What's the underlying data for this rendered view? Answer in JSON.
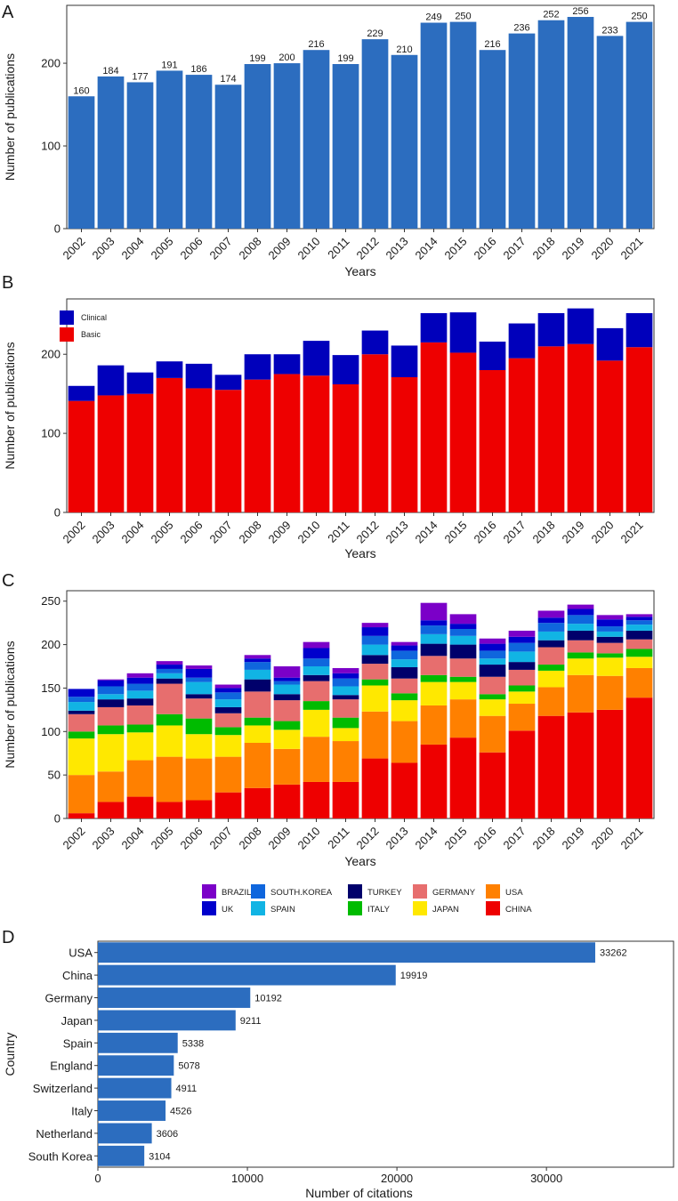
{
  "panel_labels": [
    "A",
    "B",
    "C",
    "D"
  ],
  "chart_data": [
    {
      "panel": "A",
      "type": "bar",
      "categories": [
        "2002",
        "2003",
        "2004",
        "2005",
        "2006",
        "2007",
        "2008",
        "2009",
        "2010",
        "2011",
        "2012",
        "2013",
        "2014",
        "2015",
        "2016",
        "2017",
        "2018",
        "2019",
        "2020",
        "2021"
      ],
      "values": [
        160,
        184,
        177,
        191,
        186,
        174,
        199,
        200,
        216,
        199,
        229,
        210,
        249,
        250,
        216,
        236,
        252,
        256,
        233,
        250
      ],
      "data_labels": [
        "160",
        "184",
        "177",
        "191",
        "186",
        "174",
        "199",
        "200",
        "216",
        "199",
        "229",
        "210",
        "249",
        "250",
        "216",
        "236",
        "252",
        "256",
        "233",
        "250"
      ],
      "xlabel": "Years",
      "ylabel": "Number of publications",
      "ylim": [
        0,
        270
      ],
      "yticks": [
        0,
        100,
        200
      ],
      "grid": false,
      "bar_color": "#2c6dbf"
    },
    {
      "panel": "B",
      "type": "bar",
      "stacked": true,
      "categories": [
        "2002",
        "2003",
        "2004",
        "2005",
        "2006",
        "2007",
        "2008",
        "2009",
        "2010",
        "2011",
        "2012",
        "2013",
        "2014",
        "2015",
        "2016",
        "2017",
        "2018",
        "2019",
        "2020",
        "2021"
      ],
      "series": [
        {
          "name": "Basic",
          "color": "#ee0000",
          "values": [
            141,
            148,
            150,
            170,
            157,
            155,
            168,
            175,
            173,
            162,
            200,
            171,
            215,
            202,
            180,
            195,
            210,
            213,
            192,
            209
          ]
        },
        {
          "name": "Clinical",
          "color": "#0000bb",
          "values": [
            19,
            38,
            27,
            21,
            31,
            19,
            32,
            25,
            44,
            37,
            30,
            40,
            37,
            51,
            36,
            44,
            42,
            45,
            41,
            43
          ]
        }
      ],
      "legend": [
        "Clinical",
        "Basic"
      ],
      "legend_position": "top-left",
      "xlabel": "Years",
      "ylabel": "Number of publications",
      "ylim": [
        0,
        270
      ],
      "yticks": [
        0,
        100,
        200
      ],
      "grid": false
    },
    {
      "panel": "C",
      "type": "bar",
      "stacked": true,
      "categories": [
        "2002",
        "2003",
        "2004",
        "2005",
        "2006",
        "2007",
        "2008",
        "2009",
        "2010",
        "2011",
        "2012",
        "2013",
        "2014",
        "2015",
        "2016",
        "2017",
        "2018",
        "2019",
        "2020",
        "2021"
      ],
      "series": [
        {
          "name": "CHINA",
          "color": "#ee0000",
          "values": [
            6,
            19,
            25,
            19,
            21,
            30,
            35,
            39,
            42,
            42,
            69,
            64,
            85,
            93,
            76,
            101,
            118,
            122,
            125,
            139
          ]
        },
        {
          "name": "USA",
          "color": "#ff8000",
          "values": [
            44,
            35,
            42,
            52,
            48,
            41,
            52,
            41,
            52,
            47,
            54,
            48,
            45,
            44,
            42,
            31,
            33,
            43,
            39,
            34
          ]
        },
        {
          "name": "JAPAN",
          "color": "#ffe800",
          "values": [
            42,
            43,
            32,
            36,
            28,
            25,
            20,
            22,
            31,
            15,
            30,
            24,
            27,
            20,
            19,
            14,
            19,
            19,
            21,
            13
          ]
        },
        {
          "name": "ITALY",
          "color": "#00bb00",
          "values": [
            8,
            10,
            9,
            13,
            18,
            9,
            9,
            10,
            10,
            12,
            7,
            8,
            8,
            6,
            6,
            7,
            7,
            7,
            5,
            9
          ]
        },
        {
          "name": "GERMANY",
          "color": "#e76e6e",
          "values": [
            20,
            21,
            22,
            35,
            23,
            16,
            30,
            24,
            23,
            21,
            18,
            17,
            22,
            21,
            20,
            18,
            20,
            14,
            12,
            11
          ]
        },
        {
          "name": "TURKEY",
          "color": "#00006b",
          "values": [
            4,
            9,
            8,
            6,
            5,
            7,
            14,
            7,
            7,
            5,
            10,
            13,
            14,
            16,
            14,
            9,
            8,
            11,
            7,
            10
          ]
        },
        {
          "name": "SPAIN",
          "color": "#11b4e4",
          "values": [
            10,
            6,
            9,
            6,
            14,
            9,
            11,
            11,
            10,
            10,
            12,
            9,
            11,
            10,
            7,
            12,
            10,
            8,
            6,
            7
          ]
        },
        {
          "name": "SOUTH.KOREA",
          "color": "#0f66dd",
          "values": [
            6,
            9,
            8,
            5,
            5,
            8,
            9,
            4,
            9,
            9,
            10,
            10,
            10,
            8,
            9,
            10,
            10,
            10,
            6,
            5
          ]
        },
        {
          "name": "UK",
          "color": "#0000cc",
          "values": [
            9,
            7,
            7,
            5,
            10,
            5,
            4,
            4,
            12,
            6,
            10,
            6,
            6,
            6,
            8,
            7,
            6,
            7,
            8,
            4
          ]
        },
        {
          "name": "BRAZIL",
          "color": "#7b00c8",
          "values": [
            0,
            1,
            5,
            4,
            4,
            4,
            4,
            13,
            7,
            6,
            5,
            4,
            20,
            11,
            6,
            7,
            8,
            5,
            5,
            3
          ]
        }
      ],
      "legend": [
        "BRAZIL",
        "UK",
        "SOUTH.KOREA",
        "SPAIN",
        "TURKEY",
        "ITALY",
        "GERMANY",
        "JAPAN",
        "USA",
        "CHINA"
      ],
      "legend_position": "bottom",
      "xlabel": "Years",
      "ylabel": "Number of publications",
      "ylim": [
        0,
        262
      ],
      "yticks": [
        0,
        50,
        100,
        150,
        200,
        250
      ],
      "grid": false
    },
    {
      "panel": "D",
      "type": "bar",
      "orientation": "horizontal",
      "categories": [
        "USA",
        "China",
        "Germany",
        "Japan",
        "Spain",
        "England",
        "Switzerland",
        "Italy",
        "Netherland",
        "South Korea"
      ],
      "values": [
        33262,
        19919,
        10192,
        9211,
        5338,
        5078,
        4911,
        4526,
        3606,
        3104
      ],
      "data_labels": [
        "33262",
        "19919",
        "10192",
        "9211",
        "5338",
        "5078",
        "4911",
        "4526",
        "3606",
        "3104"
      ],
      "xlabel": "Number of citations",
      "ylabel": "Country",
      "xlim": [
        0,
        38500
      ],
      "xticks": [
        0,
        10000,
        20000,
        30000
      ],
      "grid": false,
      "bar_color": "#2c6dbf"
    }
  ]
}
